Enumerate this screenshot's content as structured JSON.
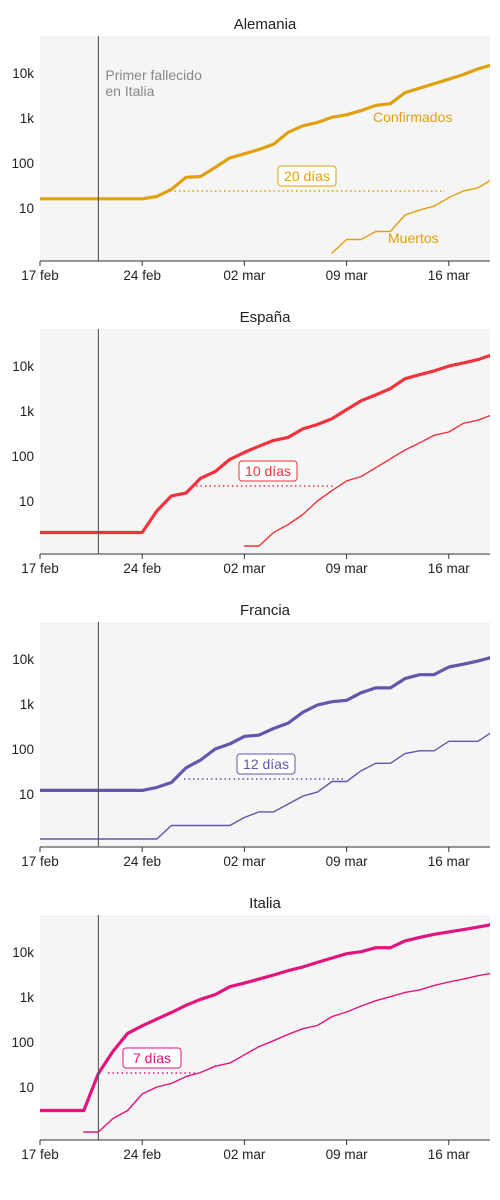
{
  "annotation": {
    "vline_date": "21 feb",
    "lines": [
      "Primer fallecido",
      "en Italia"
    ],
    "color": "#888888"
  },
  "chart_data": [
    {
      "type": "line",
      "title": "Alemania",
      "color": "#e0a010",
      "yscale": "log",
      "ylim": [
        1,
        50000
      ],
      "xlim": [
        "17 feb",
        "20 mar"
      ],
      "x_ticks": [
        "17 feb",
        "24 feb",
        "02 mar",
        "09 mar",
        "16 mar"
      ],
      "y_ticks": [
        "10",
        "100",
        "1k",
        "10k"
      ],
      "lag_label": "20 días",
      "series": [
        {
          "name": "Confirmados",
          "x": [
            "17 feb",
            "18 feb",
            "19 feb",
            "20 feb",
            "21 feb",
            "22 feb",
            "23 feb",
            "24 feb",
            "25 feb",
            "26 feb",
            "27 feb",
            "28 feb",
            "29 feb",
            "01 mar",
            "02 mar",
            "03 mar",
            "04 mar",
            "05 mar",
            "06 mar",
            "07 mar",
            "08 mar",
            "09 mar",
            "10 mar",
            "11 mar",
            "12 mar",
            "13 mar",
            "14 mar",
            "15 mar",
            "16 mar",
            "17 mar",
            "18 mar",
            "19 mar",
            "20 mar"
          ],
          "values": [
            16,
            16,
            16,
            16,
            16,
            16,
            16,
            16,
            18,
            26,
            48,
            50,
            80,
            130,
            160,
            200,
            262,
            482,
            670,
            795,
            1040,
            1176,
            1460,
            1908,
            2078,
            3675,
            4585,
            5795,
            7272,
            9257,
            12327,
            15320,
            19848
          ]
        },
        {
          "name": "Muertos",
          "x": [
            "08 mar",
            "09 mar",
            "10 mar",
            "11 mar",
            "12 mar",
            "13 mar",
            "14 mar",
            "15 mar",
            "16 mar",
            "17 mar",
            "18 mar",
            "19 mar",
            "20 mar"
          ],
          "values": [
            1,
            2,
            2,
            3,
            3,
            7,
            9,
            11,
            17,
            24,
            28,
            44,
            68
          ]
        }
      ]
    },
    {
      "type": "line",
      "title": "España",
      "color": "#f2323c",
      "yscale": "log",
      "ylim": [
        1,
        50000
      ],
      "xlim": [
        "17 feb",
        "20 mar"
      ],
      "x_ticks": [
        "17 feb",
        "24 feb",
        "02 mar",
        "09 mar",
        "16 mar"
      ],
      "y_ticks": [
        "10",
        "100",
        "1k",
        "10k"
      ],
      "lag_label": "10 días",
      "series": [
        {
          "name": "",
          "x": [
            "17 feb",
            "18 feb",
            "19 feb",
            "20 feb",
            "21 feb",
            "22 feb",
            "23 feb",
            "24 feb",
            "25 feb",
            "26 feb",
            "27 feb",
            "28 feb",
            "29 feb",
            "01 mar",
            "02 mar",
            "03 mar",
            "04 mar",
            "05 mar",
            "06 mar",
            "07 mar",
            "08 mar",
            "09 mar",
            "10 mar",
            "11 mar",
            "12 mar",
            "13 mar",
            "14 mar",
            "15 mar",
            "16 mar",
            "17 mar",
            "18 mar",
            "19 mar",
            "20 mar"
          ],
          "values": [
            2,
            2,
            2,
            2,
            2,
            2,
            2,
            2,
            6,
            13,
            15,
            32,
            45,
            84,
            120,
            165,
            222,
            259,
            400,
            500,
            673,
            1073,
            1695,
            2277,
            3146,
            5232,
            6391,
            7798,
            9942,
            11748,
            13910,
            17963,
            21571
          ]
        },
        {
          "name": "",
          "x": [
            "02 mar",
            "03 mar",
            "04 mar",
            "05 mar",
            "06 mar",
            "07 mar",
            "08 mar",
            "09 mar",
            "10 mar",
            "11 mar",
            "12 mar",
            "13 mar",
            "14 mar",
            "15 mar",
            "16 mar",
            "17 mar",
            "18 mar",
            "19 mar",
            "20 mar"
          ],
          "values": [
            1,
            1,
            2,
            3,
            5,
            10,
            17,
            28,
            35,
            55,
            86,
            136,
            195,
            288,
            342,
            533,
            623,
            830,
            1093
          ]
        }
      ]
    },
    {
      "type": "line",
      "title": "Francia",
      "color": "#6456aa",
      "yscale": "log",
      "ylim": [
        1,
        50000
      ],
      "xlim": [
        "17 feb",
        "20 mar"
      ],
      "x_ticks": [
        "17 feb",
        "24 feb",
        "02 mar",
        "09 mar",
        "16 mar"
      ],
      "y_ticks": [
        "10",
        "100",
        "1k",
        "10k"
      ],
      "lag_label": "12 días",
      "series": [
        {
          "name": "",
          "x": [
            "17 feb",
            "18 feb",
            "19 feb",
            "20 feb",
            "21 feb",
            "22 feb",
            "23 feb",
            "24 feb",
            "25 feb",
            "26 feb",
            "27 feb",
            "28 feb",
            "29 feb",
            "01 mar",
            "02 mar",
            "03 mar",
            "04 mar",
            "05 mar",
            "06 mar",
            "07 mar",
            "08 mar",
            "09 mar",
            "10 mar",
            "11 mar",
            "12 mar",
            "13 mar",
            "14 mar",
            "15 mar",
            "16 mar",
            "17 mar",
            "18 mar",
            "19 mar",
            "20 mar"
          ],
          "values": [
            12,
            12,
            12,
            12,
            12,
            12,
            12,
            12,
            14,
            18,
            38,
            57,
            100,
            130,
            191,
            204,
            285,
            377,
            653,
            949,
            1126,
            1209,
            1784,
            2281,
            2281,
            3661,
            4469,
            4499,
            6633,
            7652,
            9043,
            10995,
            12612
          ]
        },
        {
          "name": "",
          "x": [
            "17 feb",
            "18 feb",
            "19 feb",
            "20 feb",
            "21 feb",
            "22 feb",
            "23 feb",
            "24 feb",
            "25 feb",
            "26 feb",
            "27 feb",
            "28 feb",
            "29 feb",
            "01 mar",
            "02 mar",
            "03 mar",
            "04 mar",
            "05 mar",
            "06 mar",
            "07 mar",
            "08 mar",
            "09 mar",
            "10 mar",
            "11 mar",
            "12 mar",
            "13 mar",
            "14 mar",
            "15 mar",
            "16 mar",
            "17 mar",
            "18 mar",
            "19 mar",
            "20 mar"
          ],
          "values": [
            1,
            1,
            1,
            1,
            1,
            1,
            1,
            1,
            1,
            2,
            2,
            2,
            2,
            2,
            3,
            4,
            4,
            6,
            9,
            11,
            19,
            19,
            33,
            48,
            48,
            79,
            91,
            91,
            148,
            148,
            148,
            243,
            372
          ]
        }
      ]
    },
    {
      "type": "line",
      "title": "Italia",
      "color": "#e3147d",
      "yscale": "log",
      "ylim": [
        1,
        50000
      ],
      "xlim": [
        "17 feb",
        "20 mar"
      ],
      "x_ticks": [
        "17 feb",
        "24 feb",
        "02 mar",
        "09 mar",
        "16 mar"
      ],
      "y_ticks": [
        "10",
        "100",
        "1k",
        "10k"
      ],
      "lag_label": "7 días",
      "series": [
        {
          "name": "",
          "x": [
            "17 feb",
            "18 feb",
            "19 feb",
            "20 feb",
            "21 feb",
            "22 feb",
            "23 feb",
            "24 feb",
            "25 feb",
            "26 feb",
            "27 feb",
            "28 feb",
            "29 feb",
            "01 mar",
            "02 mar",
            "03 mar",
            "04 mar",
            "05 mar",
            "06 mar",
            "07 mar",
            "08 mar",
            "09 mar",
            "10 mar",
            "11 mar",
            "12 mar",
            "13 mar",
            "14 mar",
            "15 mar",
            "16 mar",
            "17 mar",
            "18 mar",
            "19 mar",
            "20 mar"
          ],
          "values": [
            3,
            3,
            3,
            3,
            20,
            62,
            155,
            229,
            322,
            453,
            655,
            888,
            1128,
            1694,
            2036,
            2502,
            3089,
            3858,
            4636,
            5883,
            7375,
            9172,
            10149,
            12462,
            12462,
            17660,
            21157,
            24747,
            27980,
            31506,
            35713,
            41035,
            47021
          ]
        },
        {
          "name": "",
          "x": [
            "20 feb",
            "21 feb",
            "22 feb",
            "23 feb",
            "24 feb",
            "25 feb",
            "26 feb",
            "27 feb",
            "28 feb",
            "29 feb",
            "01 mar",
            "02 mar",
            "03 mar",
            "04 mar",
            "05 mar",
            "06 mar",
            "07 mar",
            "08 mar",
            "09 mar",
            "10 mar",
            "11 mar",
            "12 mar",
            "13 mar",
            "14 mar",
            "15 mar",
            "16 mar",
            "17 mar",
            "18 mar",
            "19 mar",
            "20 mar"
          ],
          "values": [
            1,
            1,
            2,
            3,
            7,
            10,
            12,
            17,
            21,
            29,
            34,
            52,
            79,
            107,
            148,
            197,
            233,
            366,
            463,
            631,
            827,
            1016,
            1266,
            1441,
            1809,
            2158,
            2503,
            2978,
            3405,
            4032
          ]
        }
      ]
    }
  ]
}
